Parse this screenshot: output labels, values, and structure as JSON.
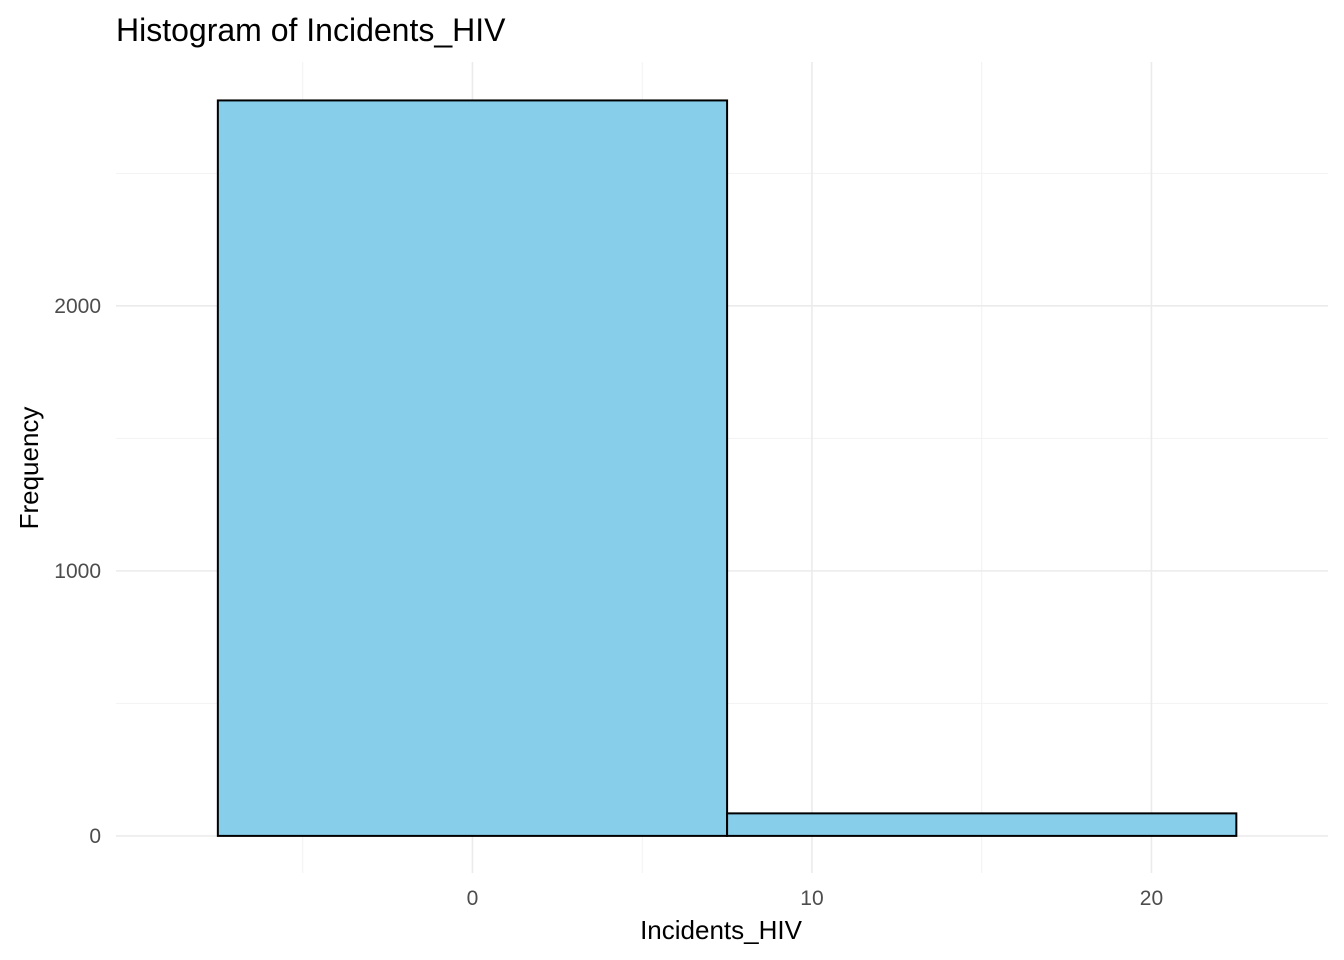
{
  "chart_data": {
    "type": "histogram",
    "title": "Histogram of Incidents_HIV",
    "xlabel": "Incidents_HIV",
    "ylabel": "Frequency",
    "bins": [
      {
        "x0": -7.5,
        "x1": 7.5,
        "count": 2775
      },
      {
        "x0": 7.5,
        "x1": 22.5,
        "count": 85
      }
    ],
    "x_ticks": [
      0,
      10,
      20
    ],
    "x_tick_labels": [
      "0",
      "10",
      "20"
    ],
    "x_minor_gridlines": [
      -5,
      5,
      15
    ],
    "y_ticks": [
      0,
      1000,
      2000
    ],
    "y_tick_labels": [
      "0",
      "1000",
      "2000"
    ],
    "y_minor_gridlines": [
      500,
      1500,
      2500
    ],
    "xlim": [
      -10.5,
      25.2
    ],
    "ylim": [
      -140,
      2920
    ],
    "grid": true,
    "legend": "none",
    "colors": {
      "bar_fill": "#87ceeb",
      "bar_stroke": "#000000"
    }
  }
}
